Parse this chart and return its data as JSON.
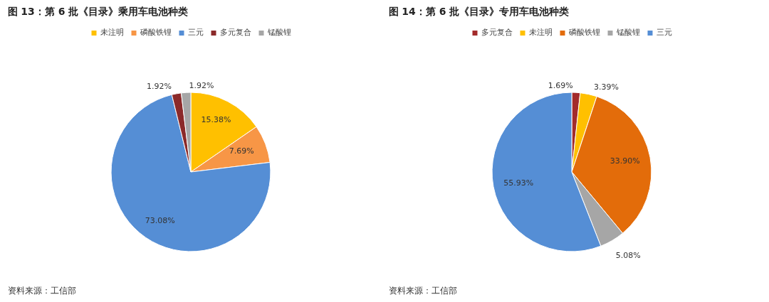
{
  "chart_data": [
    {
      "type": "pie",
      "title": "图 13：第 6 批《目录》乘用车电池种类",
      "categories": [
        "未注明",
        "磷酸铁锂",
        "三元",
        "多元复合",
        "锰酸锂"
      ],
      "values": [
        15.38,
        7.69,
        73.08,
        1.92,
        1.92
      ],
      "colors": [
        "#ffc000",
        "#f79646",
        "#558ed5",
        "#8b2a2a",
        "#a6a6a6"
      ],
      "value_labels": [
        "15.38%",
        "7.69%",
        "73.08%",
        "1.92%",
        "1.92%"
      ],
      "legend": "top",
      "annotations": [
        "资料来源：工信部"
      ]
    },
    {
      "type": "pie",
      "title": "图 14：第 6 批《目录》专用车电池种类",
      "categories": [
        "多元复合",
        "未注明",
        "磷酸铁锂",
        "锰酸锂",
        "三元"
      ],
      "values": [
        1.69,
        3.39,
        33.9,
        5.08,
        55.93
      ],
      "colors": [
        "#a32b2b",
        "#ffc000",
        "#e36c0a",
        "#a6a6a6",
        "#558ed5"
      ],
      "value_labels": [
        "1.69%",
        "3.39%",
        "33.90%",
        "5.08%",
        "55.93%"
      ],
      "legend": "top",
      "annotations": [
        "资料来源：工信部"
      ]
    }
  ]
}
